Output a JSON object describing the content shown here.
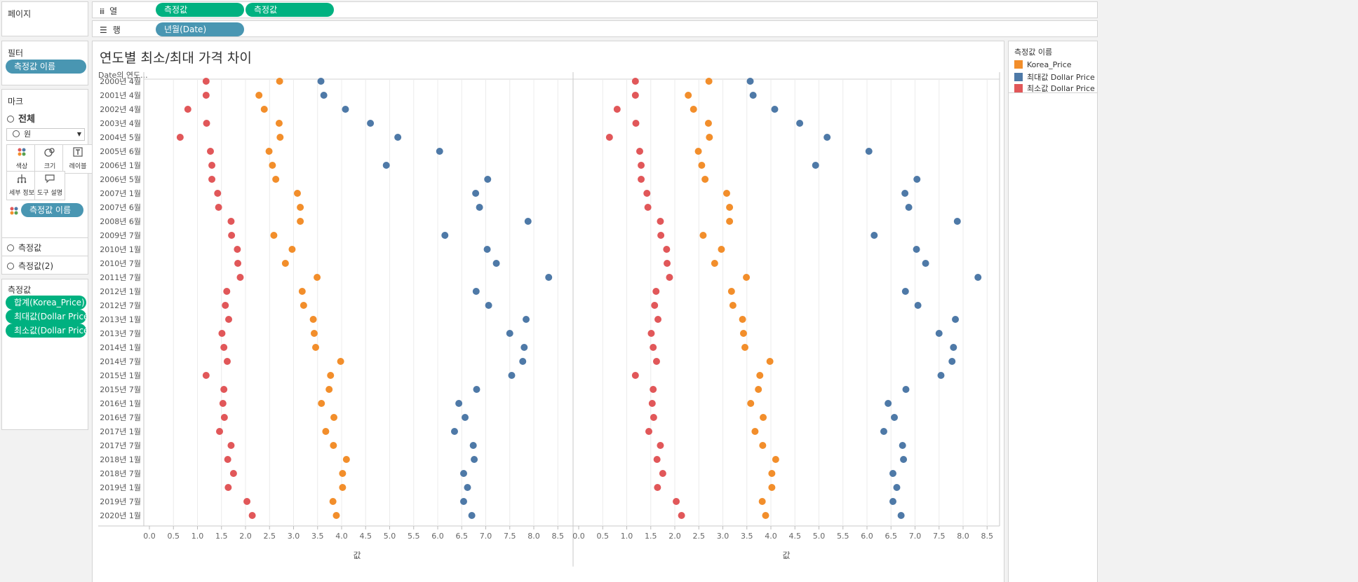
{
  "pages": {
    "title": "페이지"
  },
  "shelves": {
    "columns": {
      "label": "열",
      "pills": [
        "측정값",
        "측정값"
      ]
    },
    "rows": {
      "label": "행",
      "pills": [
        "년월(Date)"
      ]
    }
  },
  "filters": {
    "title": "필터",
    "pills": [
      "측정값 이름"
    ]
  },
  "marks": {
    "title": "마크",
    "all_label": "전체",
    "mark_type": "원",
    "buttons": {
      "color": "색상",
      "size": "크기",
      "label": "레이블",
      "detail": "세부 정보",
      "tooltip": "도구 설명"
    },
    "color_pill": "측정값 이름",
    "cards": [
      "측정값",
      "측정값(2)"
    ]
  },
  "measures": {
    "title": "측정값",
    "pills": [
      "합계(Korea_Price)",
      "최대값(Dollar Price)",
      "최소값(Dollar Price)"
    ]
  },
  "view": {
    "title": "연도별 최소/최대 가격 차이",
    "row_header": "Date의 연도..."
  },
  "legend": {
    "title": "측정값 이름",
    "items": [
      {
        "label": "Korea_Price",
        "color": "#f28e2b"
      },
      {
        "label": "최대값 Dollar Price",
        "color": "#4e79a7"
      },
      {
        "label": "최소값 Dollar Price",
        "color": "#e15759"
      }
    ]
  },
  "chart_data": {
    "type": "scatter",
    "title": "연도별 최소/최대 가격 차이",
    "xlabel": "값",
    "ylabel": "Date의 연도...",
    "xlim": [
      0,
      8.75
    ],
    "xticks": [
      "0.0",
      "0.5",
      "1.0",
      "1.5",
      "2.0",
      "2.5",
      "3.0",
      "3.5",
      "4.0",
      "4.5",
      "5.0",
      "5.5",
      "6.0",
      "6.5",
      "7.0",
      "7.5",
      "8.0",
      "8.5"
    ],
    "panes": 2,
    "categories": [
      "2000년 4월",
      "2001년 4월",
      "2002년 4월",
      "2003년 4월",
      "2004년 5월",
      "2005년 6월",
      "2006년 1월",
      "2006년 5월",
      "2007년 1월",
      "2007년 6월",
      "2008년 6월",
      "2009년 7월",
      "2010년 1월",
      "2010년 7월",
      "2011년 7월",
      "2012년 1월",
      "2012년 7월",
      "2013년 1월",
      "2013년 7월",
      "2014년 1월",
      "2014년 7월",
      "2015년 1월",
      "2015년 7월",
      "2016년 1월",
      "2016년 7월",
      "2017년 1월",
      "2017년 7월",
      "2018년 1월",
      "2018년 7월",
      "2019년 1월",
      "2019년 7월",
      "2020년 1월"
    ],
    "series": [
      {
        "name": "Korea_Price",
        "color": "#f28e2b",
        "values": [
          2.71,
          2.28,
          2.39,
          2.7,
          2.72,
          2.49,
          2.56,
          2.63,
          3.08,
          3.14,
          3.14,
          2.59,
          2.97,
          2.83,
          3.49,
          3.18,
          3.21,
          3.41,
          3.43,
          3.46,
          3.98,
          3.77,
          3.74,
          3.58,
          3.84,
          3.67,
          3.83,
          4.1,
          4.02,
          4.02,
          3.82,
          3.89
        ]
      },
      {
        "name": "최대값 Dollar Price",
        "color": "#4e79a7",
        "values": [
          3.57,
          3.63,
          4.08,
          4.6,
          5.17,
          6.04,
          4.93,
          7.04,
          6.79,
          6.87,
          7.88,
          6.15,
          7.03,
          7.22,
          8.31,
          6.8,
          7.06,
          7.84,
          7.5,
          7.8,
          7.77,
          7.54,
          6.81,
          6.44,
          6.57,
          6.35,
          6.74,
          6.76,
          6.54,
          6.62,
          6.54,
          6.71
        ]
      },
      {
        "name": "최소값 Dollar Price",
        "color": "#e15759",
        "values": [
          1.18,
          1.18,
          0.8,
          1.19,
          0.64,
          1.27,
          1.3,
          1.3,
          1.42,
          1.44,
          1.7,
          1.71,
          1.83,
          1.84,
          1.89,
          1.61,
          1.58,
          1.65,
          1.51,
          1.55,
          1.62,
          1.18,
          1.55,
          1.53,
          1.56,
          1.46,
          1.7,
          1.63,
          1.75,
          1.64,
          2.03,
          2.14
        ]
      }
    ],
    "grid": true,
    "legend": "right"
  }
}
